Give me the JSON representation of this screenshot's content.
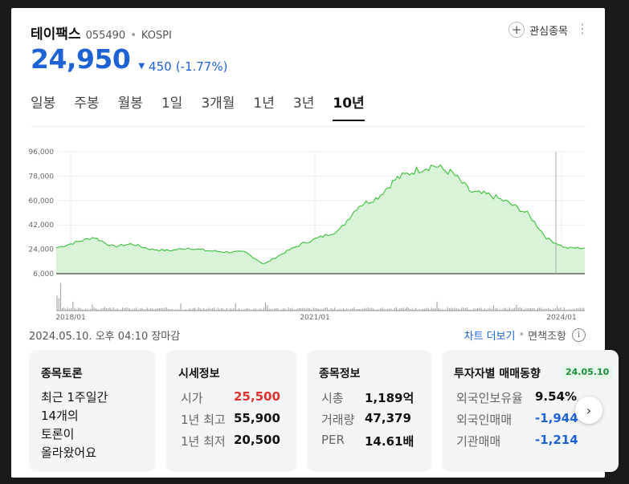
{
  "header": {
    "name": "테이팩스",
    "code": "055490",
    "separator": "•",
    "market": "KOSPI",
    "watch_label": "관심종목",
    "more_icon": "kebab-icon"
  },
  "price": {
    "current": "24,950",
    "change": "450",
    "change_pct": "(-1.77%)",
    "direction": "down",
    "color": "#1e63d6"
  },
  "tabs": [
    "일봉",
    "주봉",
    "월봉",
    "1일",
    "3개월",
    "1년",
    "3년",
    "10년"
  ],
  "active_tab": "10년",
  "chart_data": {
    "type": "area",
    "y_ticks": [
      "96,000",
      "78,000",
      "60,000",
      "42,000",
      "24,000",
      "6,000"
    ],
    "x_ticks": [
      "2018/01",
      "2021/01",
      "2024/01"
    ],
    "ylim": [
      6000,
      96000
    ],
    "line_color": "#3bbf3b",
    "fill_color": "#d8f3d8",
    "grid": true,
    "series": [
      {
        "x": [
          "2017.06",
          "2017.09",
          "2017.12",
          "2018.03",
          "2018.06",
          "2018.09",
          "2018.12",
          "2019.03",
          "2019.06",
          "2019.09",
          "2019.12",
          "2020.03",
          "2020.06",
          "2020.09",
          "2020.12",
          "2021.03",
          "2021.06",
          "2021.09",
          "2021.12",
          "2022.03",
          "2022.06",
          "2022.09",
          "2022.12",
          "2023.03",
          "2023.06",
          "2023.09",
          "2023.12",
          "2024.03",
          "2024.05"
        ],
        "values": [
          25000,
          29000,
          33000,
          26000,
          28000,
          24000,
          23000,
          25000,
          23000,
          22000,
          22000,
          13000,
          21000,
          28000,
          33000,
          38000,
          56000,
          62000,
          76000,
          82000,
          86000,
          80000,
          66000,
          64000,
          58000,
          50000,
          32000,
          25000,
          24950
        ]
      }
    ],
    "volume_shown": true
  },
  "status": {
    "date": "2024.05.10. 오후 04:10 장마감",
    "more_chart": "차트 더보기",
    "sep": "•",
    "disclaimer": "면책조항",
    "info_icon": "info-icon"
  },
  "cards": {
    "forum": {
      "title": "종목토론",
      "lines": [
        "최근 1주일간",
        "14개의",
        "토론이",
        "올라왔어요"
      ]
    },
    "quote": {
      "title": "시세정보",
      "rows": [
        {
          "label": "시가",
          "value": "25,500",
          "color": "#e0322f"
        },
        {
          "label": "1년 최고",
          "value": "55,900"
        },
        {
          "label": "1년 최저",
          "value": "20,500"
        }
      ]
    },
    "stock": {
      "title": "종목정보",
      "rows": [
        {
          "label": "시총",
          "value": "1,189억"
        },
        {
          "label": "거래량",
          "value": "47,379"
        },
        {
          "label": "PER",
          "value": "14.61배"
        }
      ]
    },
    "investor": {
      "title": "투자자별 매매동향",
      "badge": "24.05.10",
      "rows": [
        {
          "label": "외국인보유율",
          "value": "9.54%"
        },
        {
          "label": "외국인매매",
          "value": "-1,944",
          "color": "#1e63d6"
        },
        {
          "label": "기관매매",
          "value": "-1,214",
          "color": "#1e63d6"
        }
      ]
    }
  },
  "next_icon": "chevron-right-icon"
}
